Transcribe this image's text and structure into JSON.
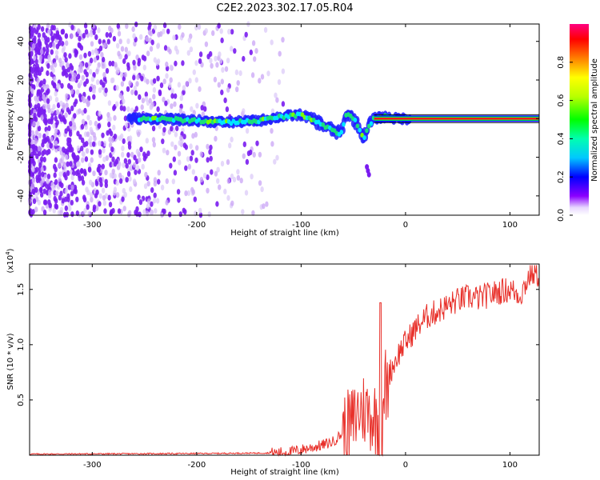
{
  "title": "C2E2.2023.302.17.05.R04",
  "chart_data": [
    {
      "type": "heatmap",
      "xlabel": "Height of straight line (km)",
      "ylabel": "Frequency (Hz)",
      "xlim": [
        -360,
        128
      ],
      "ylim": [
        -50,
        49
      ],
      "xticks": [
        -300,
        -200,
        -100,
        0,
        100
      ],
      "yticks": [
        -40,
        -20,
        0,
        20,
        40
      ],
      "colorbar": {
        "label": "Normalized spectral amplitude",
        "range": [
          0,
          1
        ],
        "ticks": [
          0.0,
          0.2,
          0.4,
          0.6,
          0.8
        ],
        "colormap": [
          "#ffffff",
          "#8b00ff",
          "#0000ff",
          "#00ffff",
          "#00ff00",
          "#ffff00",
          "#ff8000",
          "#ff0000",
          "#ff0080"
        ]
      },
      "signal_trace": [
        {
          "x": -265,
          "f": 0
        },
        {
          "x": -240,
          "f": 0
        },
        {
          "x": -200,
          "f": -1
        },
        {
          "x": -170,
          "f": -2
        },
        {
          "x": -140,
          "f": -1
        },
        {
          "x": -120,
          "f": 1
        },
        {
          "x": -100,
          "f": 2
        },
        {
          "x": -90,
          "f": 0
        },
        {
          "x": -80,
          "f": -3
        },
        {
          "x": -70,
          "f": -6
        },
        {
          "x": -62,
          "f": -8
        },
        {
          "x": -56,
          "f": 3
        },
        {
          "x": -50,
          "f": 0
        },
        {
          "x": -45,
          "f": -4
        },
        {
          "x": -40,
          "f": -10
        },
        {
          "x": -36,
          "f": -4
        },
        {
          "x": -30,
          "f": 0
        },
        {
          "x": -20,
          "f": 1
        },
        {
          "x": -10,
          "f": 0
        },
        {
          "x": 0,
          "f": 0
        },
        {
          "x": 128,
          "f": 0
        }
      ]
    },
    {
      "type": "line",
      "xlabel": "Height of straight line (km)",
      "ylabel": "SNR (10 * v/v)",
      "y_multiplier": "(x10",
      "y_multiplier_exp": "4",
      "y_multiplier_close": ")",
      "xlim": [
        -360,
        128
      ],
      "ylim": [
        0,
        1.73
      ],
      "xticks": [
        -300,
        -200,
        -100,
        0,
        100
      ],
      "yticks": [
        0.5,
        1.0,
        1.5
      ],
      "ytick_labels": [
        "0.5",
        "1.0",
        "1.5"
      ],
      "color": "#e8302a",
      "series": [
        {
          "x": [
            -360,
            -300,
            -200,
            -130,
            -110,
            -95,
            -80,
            -70,
            -60,
            -50,
            -45,
            -40,
            -35,
            -30,
            -25,
            -22,
            -20,
            -18,
            -15,
            -10,
            -5,
            0,
            10,
            20,
            30,
            40,
            50,
            60,
            70,
            80,
            90,
            100,
            110,
            115,
            120,
            128
          ],
          "y": [
            0.01,
            0.012,
            0.015,
            0.02,
            0.03,
            0.06,
            0.09,
            0.12,
            0.2,
            0.3,
            0.4,
            0.42,
            0.38,
            0.35,
            0.3,
            0.05,
            0.7,
            0.55,
            0.75,
            0.85,
            0.95,
            1.02,
            1.15,
            1.25,
            1.3,
            1.35,
            1.4,
            1.43,
            1.42,
            1.45,
            1.48,
            1.5,
            1.45,
            1.55,
            1.65,
            1.63
          ]
        }
      ]
    }
  ]
}
